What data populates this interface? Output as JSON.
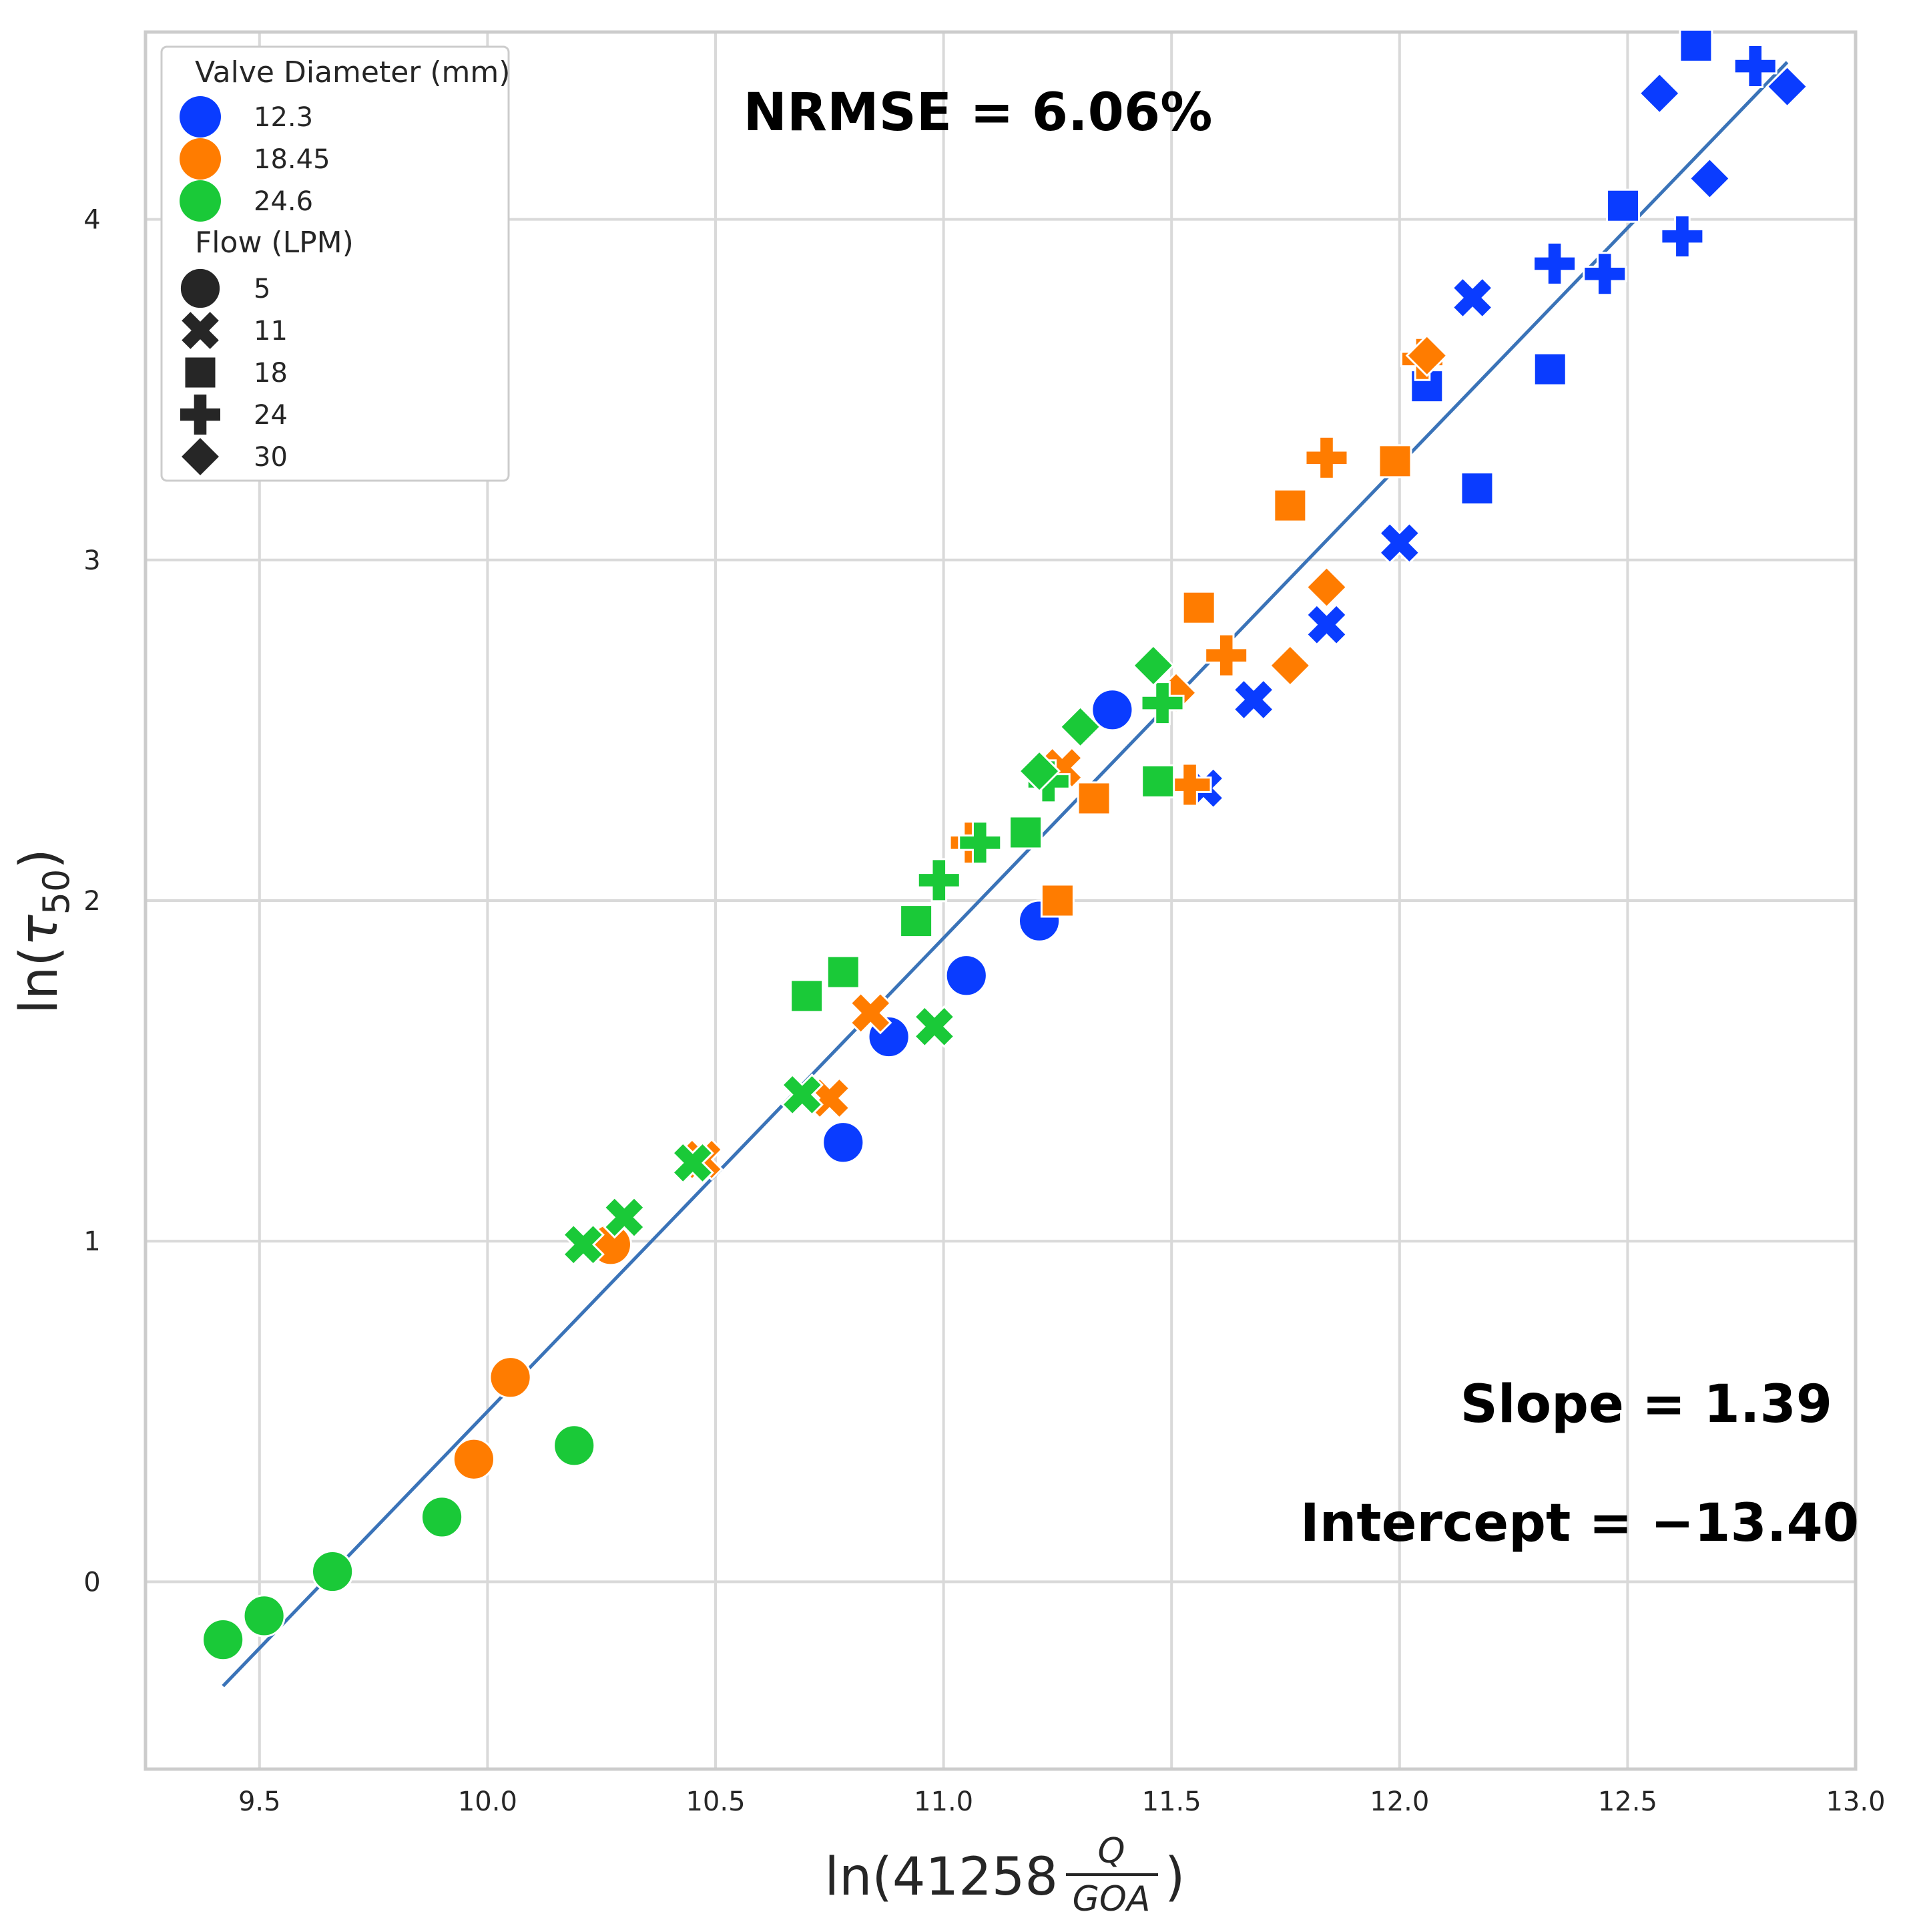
{
  "chart_data": {
    "type": "scatter",
    "xlabel_prefix": "ln(41258",
    "xlabel_frac_num": "Q",
    "xlabel_frac_den": "GOA",
    "xlabel_suffix": ")",
    "ylabel_prefix": "ln(",
    "ylabel_tau": "τ",
    "ylabel_sub": "50",
    "ylabel_suffix": ")",
    "xlim": [
      9.25,
      13.0
    ],
    "ylim": [
      -0.55,
      4.55
    ],
    "xticks": [
      9.5,
      10.0,
      10.5,
      11.0,
      11.5,
      12.0,
      12.5,
      13.0
    ],
    "xtick_labels": [
      "9.5",
      "10.0",
      "10.5",
      "11.0",
      "11.5",
      "12.0",
      "12.5",
      "13.0"
    ],
    "yticks": [
      0,
      1,
      2,
      3,
      4
    ],
    "ytick_labels": [
      "0",
      "1",
      "2",
      "3",
      "4"
    ],
    "grid": true,
    "legend_placement": "top-left",
    "legend": {
      "color_title": "Valve Diameter (mm)",
      "color_entries": [
        {
          "label": "12.3",
          "color": "#0a3cff"
        },
        {
          "label": "18.45",
          "color": "#ff7c00"
        },
        {
          "label": "24.6",
          "color": "#1ac938"
        }
      ],
      "marker_title": "Flow (LPM)",
      "marker_entries": [
        {
          "label": "5",
          "marker": "circle"
        },
        {
          "label": "11",
          "marker": "x"
        },
        {
          "label": "18",
          "marker": "square"
        },
        {
          "label": "24",
          "marker": "plus"
        },
        {
          "label": "30",
          "marker": "diamond"
        }
      ]
    },
    "annotations": {
      "nrmse": "NRMSE = 6.06%",
      "slope": "Slope = 1.39",
      "intercept": "Intercept = −13.40"
    },
    "fit_line": {
      "slope": 1.39,
      "intercept": -13.4,
      "x_range": [
        9.42,
        12.85
      ]
    },
    "series": [
      {
        "diameter": "12.3",
        "flow": "5",
        "points": [
          [
            10.78,
            1.29
          ],
          [
            10.88,
            1.6
          ],
          [
            11.05,
            1.78
          ],
          [
            11.21,
            1.94
          ],
          [
            11.37,
            2.56
          ]
        ]
      },
      {
        "diameter": "12.3",
        "flow": "11",
        "points": [
          [
            11.57,
            2.33
          ],
          [
            11.68,
            2.59
          ],
          [
            11.84,
            2.81
          ],
          [
            12.0,
            3.05
          ],
          [
            12.16,
            3.77
          ]
        ]
      },
      {
        "diameter": "12.3",
        "flow": "18",
        "points": [
          [
            12.06,
            3.51
          ],
          [
            12.17,
            3.21
          ],
          [
            12.33,
            3.56
          ],
          [
            12.49,
            4.04
          ],
          [
            12.65,
            4.51
          ]
        ]
      },
      {
        "diameter": "12.3",
        "flow": "24",
        "points": [
          [
            12.34,
            3.87
          ],
          [
            12.45,
            3.84
          ],
          [
            12.62,
            3.95
          ],
          [
            12.78,
            4.45
          ]
        ]
      },
      {
        "diameter": "12.3",
        "flow": "30",
        "points": [
          [
            12.57,
            4.37
          ],
          [
            12.68,
            4.12
          ],
          [
            12.85,
            4.39
          ]
        ]
      },
      {
        "diameter": "18.45",
        "flow": "5",
        "points": [
          [
            9.97,
            0.36
          ],
          [
            10.05,
            0.6
          ],
          [
            10.27,
            0.99
          ]
        ]
      },
      {
        "diameter": "18.45",
        "flow": "11",
        "points": [
          [
            10.47,
            1.24
          ],
          [
            10.75,
            1.42
          ],
          [
            10.84,
            1.67
          ],
          [
            11.26,
            2.39
          ]
        ]
      },
      {
        "diameter": "18.45",
        "flow": "18",
        "points": [
          [
            11.25,
            2.0
          ],
          [
            11.33,
            2.3
          ],
          [
            11.56,
            2.86
          ],
          [
            11.76,
            3.16
          ],
          [
            11.99,
            3.29
          ]
        ]
      },
      {
        "diameter": "18.45",
        "flow": "24",
        "points": [
          [
            11.06,
            2.17
          ],
          [
            11.54,
            2.34
          ],
          [
            11.62,
            2.72
          ],
          [
            11.84,
            3.3
          ],
          [
            12.05,
            3.59
          ]
        ]
      },
      {
        "diameter": "18.45",
        "flow": "30",
        "points": [
          [
            11.51,
            2.61
          ],
          [
            11.76,
            2.69
          ],
          [
            11.84,
            2.92
          ],
          [
            12.06,
            3.6
          ]
        ]
      },
      {
        "diameter": "24.6",
        "flow": "5",
        "points": [
          [
            9.42,
            -0.17
          ],
          [
            9.51,
            -0.1
          ],
          [
            9.66,
            0.03
          ],
          [
            9.9,
            0.19
          ],
          [
            10.19,
            0.4
          ]
        ]
      },
      {
        "diameter": "24.6",
        "flow": "11",
        "points": [
          [
            10.21,
            0.99
          ],
          [
            10.3,
            1.07
          ],
          [
            10.45,
            1.23
          ],
          [
            10.69,
            1.43
          ],
          [
            10.98,
            1.63
          ]
        ]
      },
      {
        "diameter": "24.6",
        "flow": "18",
        "points": [
          [
            10.7,
            1.72
          ],
          [
            10.78,
            1.79
          ],
          [
            10.94,
            1.94
          ],
          [
            11.18,
            2.2
          ],
          [
            11.47,
            2.35
          ]
        ]
      },
      {
        "diameter": "24.6",
        "flow": "24",
        "points": [
          [
            10.99,
            2.06
          ],
          [
            11.08,
            2.17
          ],
          [
            11.23,
            2.35
          ],
          [
            11.48,
            2.58
          ]
        ]
      },
      {
        "diameter": "24.6",
        "flow": "30",
        "points": [
          [
            11.21,
            2.38
          ],
          [
            11.3,
            2.51
          ],
          [
            11.46,
            2.69
          ]
        ]
      }
    ]
  }
}
